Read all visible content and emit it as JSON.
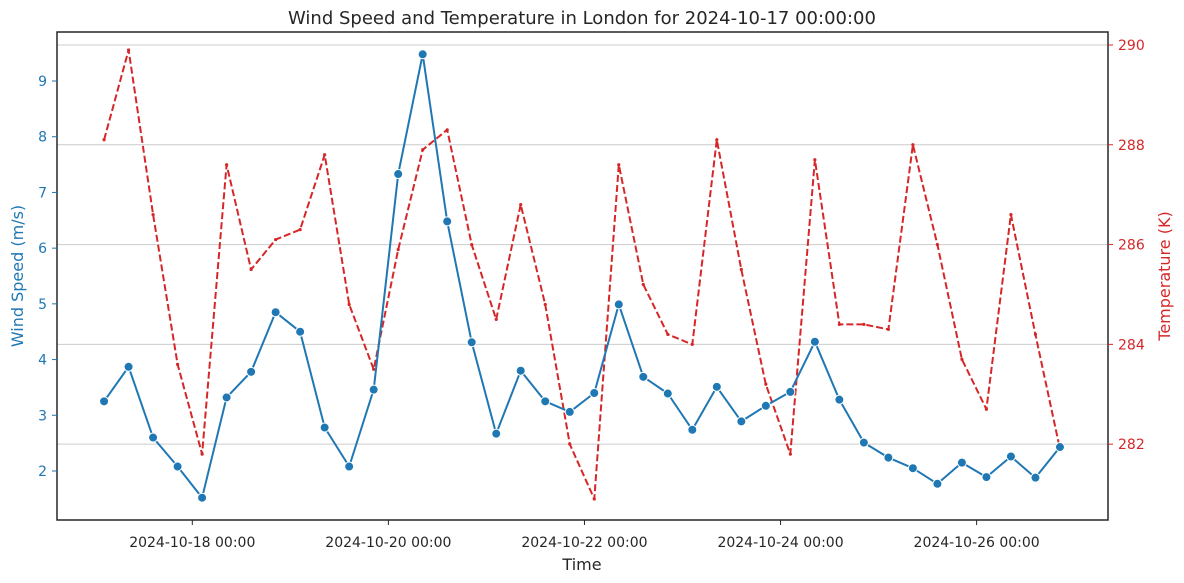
{
  "chart_data": {
    "type": "line",
    "title": "Wind Speed and Temperature in London for 2024-10-17 00:00:00",
    "xlabel": "Time",
    "ylabel_left": "Wind Speed (m/s)",
    "ylabel_right": "Temperature (K)",
    "x_ticks": [
      "2024-10-18 00:00",
      "2024-10-20 00:00",
      "2024-10-22 00:00",
      "2024-10-24 00:00",
      "2024-10-26 00:00"
    ],
    "x_tick_positions": [
      0.9,
      2.9,
      4.9,
      6.9,
      8.9
    ],
    "x_range": [
      -0.48,
      10.24
    ],
    "y_left_ticks": [
      2,
      3,
      4,
      5,
      6,
      7,
      8,
      9
    ],
    "y_left_range": [
      1.12,
      9.88
    ],
    "y_right_ticks": [
      282,
      284,
      286,
      288,
      290
    ],
    "y_right_range": [
      280.48,
      290.26
    ],
    "grid": "horizontal-right-axis",
    "colors": {
      "wind": "#1f77b4",
      "temperature": "#d62728",
      "grid": "#cccccc",
      "axes": "#262626"
    },
    "x": [
      0,
      0.25,
      0.5,
      0.75,
      1,
      1.25,
      1.5,
      1.75,
      2,
      2.25,
      2.5,
      2.75,
      3,
      3.25,
      3.5,
      3.75,
      4,
      4.25,
      4.5,
      4.75,
      5,
      5.25,
      5.5,
      5.75,
      6,
      6.25,
      6.5,
      6.75,
      7,
      7.25,
      7.5,
      7.75,
      8,
      8.25,
      8.5,
      8.75,
      9,
      9.25,
      9.5,
      9.75
    ],
    "series": [
      {
        "name": "Wind Speed (m/s)",
        "axis": "left",
        "style": "solid-markers",
        "values": [
          3.25,
          3.87,
          2.6,
          2.08,
          1.52,
          3.32,
          3.78,
          4.85,
          4.5,
          2.78,
          2.08,
          3.46,
          7.33,
          9.48,
          6.48,
          4.31,
          2.67,
          3.8,
          3.25,
          3.06,
          3.4,
          4.99,
          3.69,
          3.39,
          2.74,
          3.51,
          2.89,
          3.17,
          3.42,
          4.32,
          3.28,
          2.51,
          2.24,
          2.05,
          1.77,
          2.15,
          1.89,
          2.26,
          1.88,
          2.43
        ]
      },
      {
        "name": "Temperature (K)",
        "axis": "right",
        "style": "dashed",
        "values": [
          288.1,
          289.9,
          286.6,
          283.6,
          281.8,
          287.6,
          285.5,
          286.1,
          286.3,
          287.8,
          284.8,
          283.5,
          285.9,
          287.9,
          288.3,
          286.0,
          284.5,
          286.8,
          284.8,
          282.0,
          280.9,
          287.6,
          285.2,
          284.2,
          284.0,
          288.1,
          285.5,
          283.2,
          281.8,
          287.7,
          284.4,
          284.4,
          284.3,
          288.0,
          286.0,
          283.7,
          282.7,
          286.6,
          284.2,
          281.9
        ]
      }
    ]
  }
}
